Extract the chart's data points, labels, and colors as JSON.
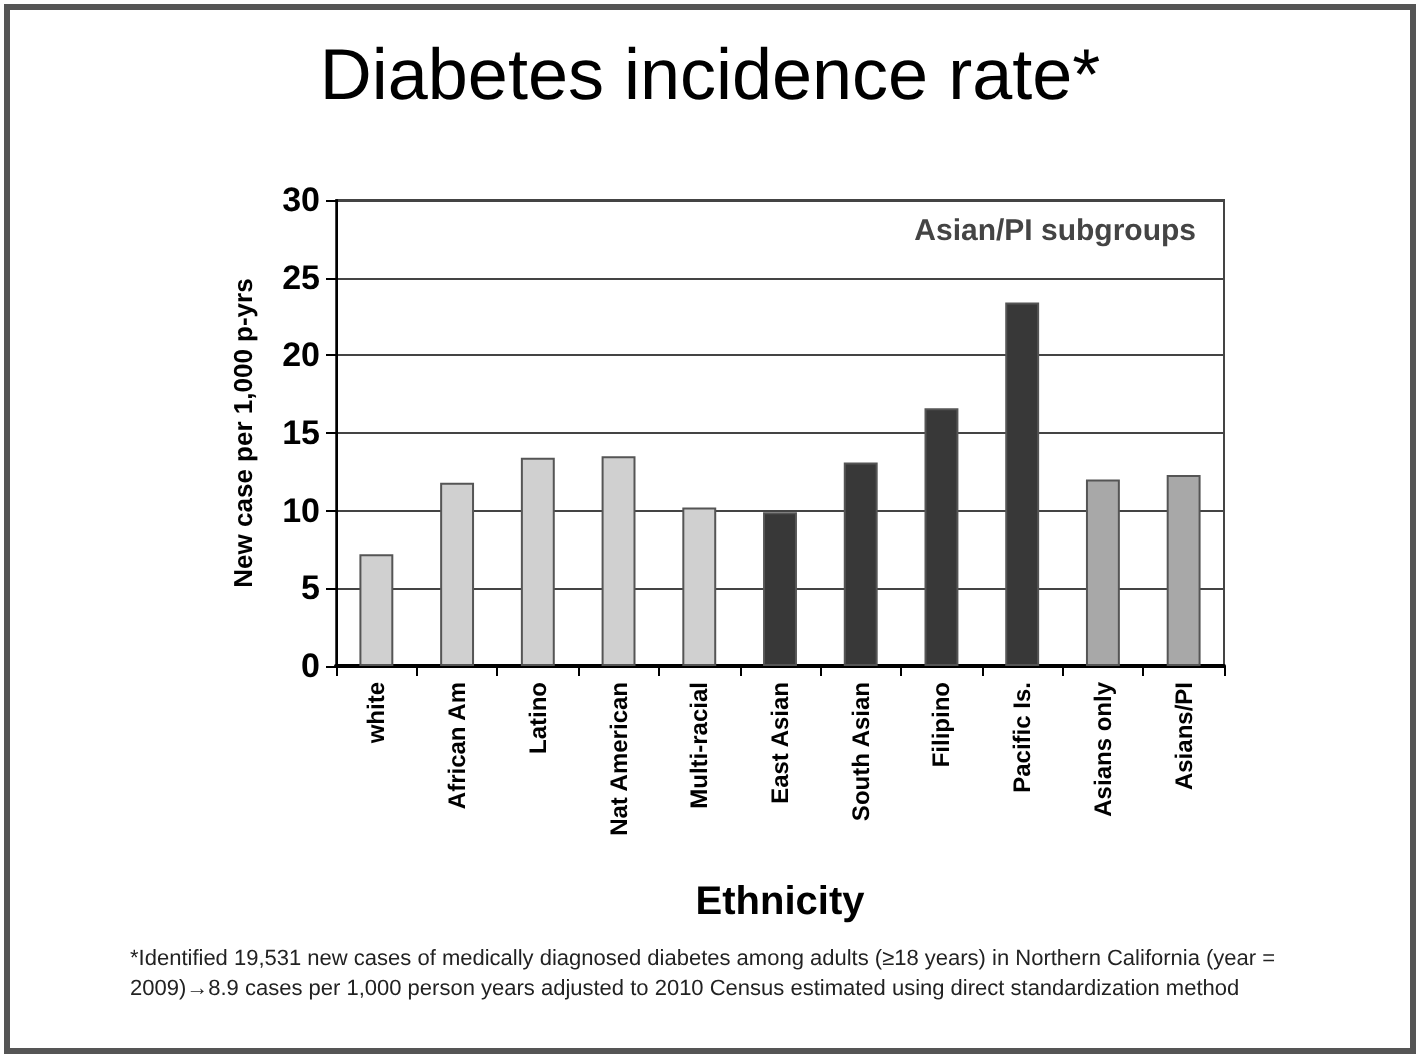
{
  "chart_data": {
    "type": "bar",
    "title": "Diabetes incidence rate*",
    "xlabel": "Ethnicity",
    "ylabel": "New case per 1,000 p-yrs",
    "categories": [
      "white",
      "African Am",
      "Latino",
      "Nat American",
      "Multi-racial",
      "East Asian",
      "South Asian",
      "Filipino",
      "Pacific Is.",
      "Asians only",
      "Asians/PI"
    ],
    "values": [
      7.2,
      11.8,
      13.4,
      13.5,
      10.2,
      9.9,
      13.1,
      16.6,
      23.4,
      12.0,
      12.3
    ],
    "colors": [
      "#d0d0d0",
      "#d0d0d0",
      "#d0d0d0",
      "#d0d0d0",
      "#d0d0d0",
      "#383838",
      "#383838",
      "#383838",
      "#383838",
      "#a8a8a8",
      "#a8a8a8"
    ],
    "ylim": [
      0,
      30
    ],
    "yticks": [
      0,
      5,
      10,
      15,
      20,
      25,
      30
    ],
    "grid": "y",
    "annotations": [
      "Asian/PI subgroups",
      "*Identified 19,531 new cases of medically diagnosed diabetes among adults (≥18 years) in Northern California (year = 2009)→8.9 cases per 1,000 person years adjusted to 2010 Census estimated using direct standardization method"
    ]
  }
}
